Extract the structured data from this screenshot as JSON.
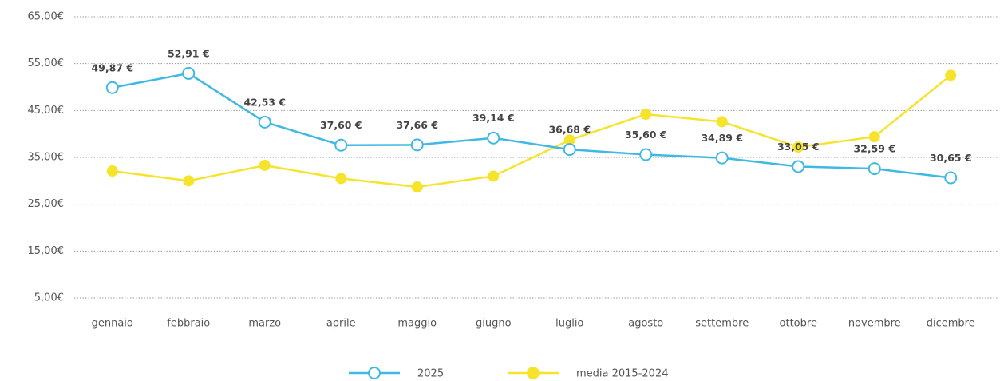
{
  "chart_data": {
    "type": "line",
    "categories": [
      "gennaio",
      "febbraio",
      "marzo",
      "aprile",
      "maggio",
      "giugno",
      "luglio",
      "agosto",
      "settembre",
      "ottobre",
      "novembre",
      "dicembre"
    ],
    "series": [
      {
        "name": "2025",
        "color": "#3fb9e3",
        "marker": "hollow",
        "values": [
          49.87,
          52.91,
          42.53,
          37.6,
          37.66,
          39.14,
          36.68,
          35.6,
          34.89,
          33.05,
          32.59,
          30.65
        ],
        "value_labels": [
          "49,87 €",
          "52,91 €",
          "42,53 €",
          "37,60 €",
          "37,66 €",
          "39,14 €",
          "36,68 €",
          "35,60 €",
          "34,89 €",
          "33,05 €",
          "32,59 €",
          "30,65 €"
        ]
      },
      {
        "name": "media 2015-2024",
        "color": "#f6e42c",
        "marker": "filled",
        "values": [
          32.1,
          30.0,
          33.3,
          30.5,
          28.7,
          31.0,
          38.7,
          44.2,
          42.6,
          37.2,
          39.4,
          52.5
        ]
      }
    ],
    "ylim": [
      3,
      66
    ],
    "yticks": [
      {
        "value": 5,
        "label": "5,00€"
      },
      {
        "value": 15,
        "label": "15,00€"
      },
      {
        "value": 25,
        "label": "25,00€"
      },
      {
        "value": 35,
        "label": "35,00€"
      },
      {
        "value": 45,
        "label": "45,00€"
      },
      {
        "value": 55,
        "label": "55,00€"
      },
      {
        "value": 65,
        "label": "65,00€"
      }
    ],
    "grid": true,
    "legend": "bottom"
  }
}
